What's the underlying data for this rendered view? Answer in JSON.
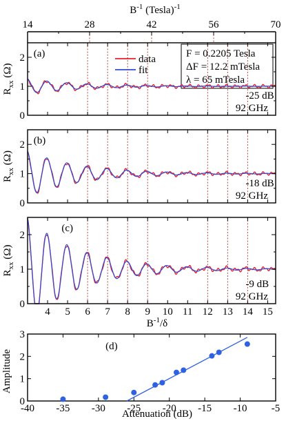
{
  "chart_data": {
    "type": "line",
    "top_axis": {
      "label": "B",
      "label_sup": "-1",
      "label_tail": " (Tesla)",
      "label_tail_sup": "-1",
      "ticks": [
        "14",
        "28",
        "42",
        "56",
        "70"
      ],
      "range": [
        14,
        70
      ]
    },
    "x_axis": {
      "label": "B",
      "label_sup": "-1",
      "label_tail": "/δ",
      "range": [
        3,
        15.4
      ],
      "ticks": [
        "4",
        "5",
        "6",
        "7",
        "8",
        "9",
        "10",
        "11",
        "12",
        "13",
        "14",
        "15"
      ]
    },
    "vertical_reference_lines": [
      6,
      7,
      8,
      9,
      12,
      13,
      14
    ],
    "y_label": {
      "main": "R",
      "sub": "xx",
      "unit": " (Ω)"
    },
    "y_range": [
      0,
      2.5
    ],
    "y_ticks": [
      "0",
      "1",
      "2"
    ],
    "legend": [
      {
        "name": "data",
        "color": "#e8202a"
      },
      {
        "name": "fit",
        "color": "#2e4bd8"
      }
    ],
    "fit_params": [
      "F = 0.2205 Tesla",
      "ΔF = 12.2 mTesla",
      "λ = 65 mTesla"
    ],
    "model": {
      "frequency": 1.0,
      "decay": 0.38,
      "phase": 0.03
    },
    "panels": [
      {
        "tag": "(a)",
        "power": "-25 dB",
        "freq": "92 GHz",
        "amplitude": 0.52
      },
      {
        "tag": "(b)",
        "power": "-18 dB",
        "freq": "92 GHz",
        "amplitude": 1.56
      },
      {
        "tag": "(c)",
        "power": "-9 dB",
        "freq": "92 GHz",
        "amplitude": 3.0
      }
    ],
    "amplitude_plot": {
      "tag": "(d)",
      "type": "scatter",
      "xlabel": "Attenuation (dB)",
      "ylabel": "Amplitude",
      "xlim": [
        -40,
        -5
      ],
      "ylim": [
        0,
        3
      ],
      "x_ticks": [
        "-40",
        "-35",
        "-30",
        "-25",
        "-20",
        "-15",
        "-10",
        "-5"
      ],
      "y_ticks": [
        "0",
        "1",
        "2",
        "3"
      ],
      "points": [
        {
          "x": -35,
          "y": 0.08
        },
        {
          "x": -29,
          "y": 0.17
        },
        {
          "x": -25,
          "y": 0.38
        },
        {
          "x": -22,
          "y": 0.72
        },
        {
          "x": -21,
          "y": 0.82
        },
        {
          "x": -19,
          "y": 1.28
        },
        {
          "x": -18,
          "y": 1.38
        },
        {
          "x": -14,
          "y": 2.02
        },
        {
          "x": -13,
          "y": 2.18
        },
        {
          "x": -9,
          "y": 2.55
        }
      ],
      "fit_line": {
        "x": [
          -26,
          -9
        ],
        "y": [
          0.0,
          2.85
        ]
      },
      "point_color": "#2e62e0"
    }
  }
}
